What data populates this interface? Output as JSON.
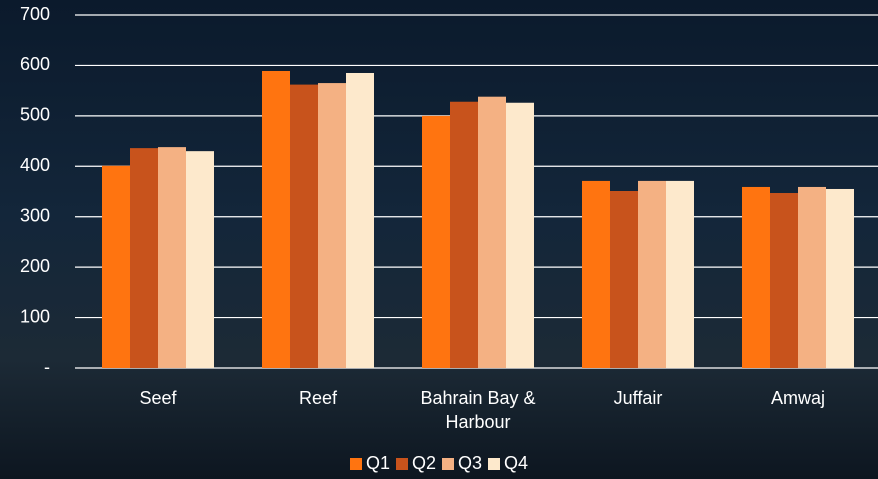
{
  "chart_data": {
    "type": "bar",
    "categories": [
      "Seef",
      "Reef",
      "Bahrain Bay & Harbour",
      "Juffair",
      "Amwaj"
    ],
    "series": [
      {
        "name": "Q1",
        "color": "#ff7410",
        "values": [
          401,
          589,
          500,
          371,
          359
        ]
      },
      {
        "name": "Q2",
        "color": "#c8531c",
        "values": [
          436,
          562,
          528,
          351,
          347
        ]
      },
      {
        "name": "Q3",
        "color": "#f4b183",
        "values": [
          438,
          565,
          538,
          371,
          359
        ]
      },
      {
        "name": "Q4",
        "color": "#fde9cc",
        "values": [
          430,
          585,
          526,
          371,
          355
        ]
      }
    ],
    "ylim": [
      0,
      700
    ],
    "yticks": [
      {
        "value": 0,
        "label": "-"
      },
      100,
      200,
      300,
      400,
      500,
      600,
      700
    ],
    "grid": true
  }
}
